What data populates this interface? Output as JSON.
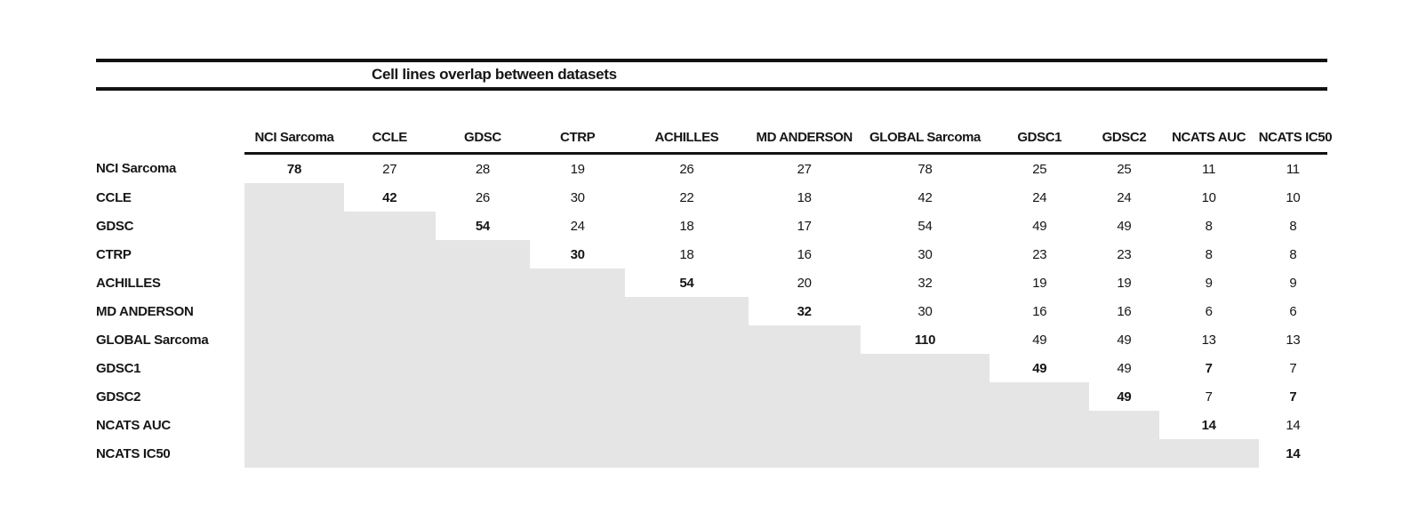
{
  "colors": {
    "shaded_cell": "#e6e5e5",
    "rule": "#121212",
    "text": "#161616",
    "background": "#ffffff"
  },
  "chart_data": {
    "type": "table",
    "title": "Cell lines overlap between datasets",
    "columns": [
      "NCI Sarcoma",
      "CCLE",
      "GDSC",
      "CTRP",
      "ACHILLES",
      "MD ANDERSON",
      "GLOBAL Sarcoma",
      "GDSC1",
      "GDSC2",
      "NCATS AUC",
      "NCATS IC50"
    ],
    "row_labels": [
      "NCI Sarcoma",
      "CCLE",
      "GDSC",
      "CTRP",
      "ACHILLES",
      "MD ANDERSON",
      "GLOBAL Sarcoma",
      "GDSC1",
      "GDSC2",
      "NCATS AUC",
      "NCATS IC50"
    ],
    "matrix": [
      [
        78,
        27,
        28,
        19,
        26,
        27,
        78,
        25,
        25,
        11,
        11
      ],
      [
        null,
        42,
        26,
        30,
        22,
        18,
        42,
        24,
        24,
        10,
        10
      ],
      [
        null,
        null,
        54,
        24,
        18,
        17,
        54,
        49,
        49,
        8,
        8
      ],
      [
        null,
        null,
        null,
        30,
        18,
        16,
        30,
        23,
        23,
        8,
        8
      ],
      [
        null,
        null,
        null,
        null,
        54,
        20,
        32,
        19,
        19,
        9,
        9
      ],
      [
        null,
        null,
        null,
        null,
        null,
        32,
        30,
        16,
        16,
        6,
        6
      ],
      [
        null,
        null,
        null,
        null,
        null,
        null,
        110,
        49,
        49,
        13,
        13
      ],
      [
        null,
        null,
        null,
        null,
        null,
        null,
        null,
        49,
        49,
        7,
        7
      ],
      [
        null,
        null,
        null,
        null,
        null,
        null,
        null,
        null,
        49,
        7,
        7
      ],
      [
        null,
        null,
        null,
        null,
        null,
        null,
        null,
        null,
        null,
        14,
        14
      ],
      [
        null,
        null,
        null,
        null,
        null,
        null,
        null,
        null,
        null,
        null,
        14
      ]
    ],
    "bold_cells": [
      [
        0,
        0
      ],
      [
        1,
        1
      ],
      [
        2,
        2
      ],
      [
        3,
        3
      ],
      [
        4,
        4
      ],
      [
        5,
        5
      ],
      [
        6,
        6
      ],
      [
        7,
        7
      ],
      [
        7,
        9
      ],
      [
        8,
        8
      ],
      [
        8,
        10
      ],
      [
        9,
        9
      ],
      [
        10,
        10
      ]
    ],
    "shaded_region": "lower-triangle",
    "layout": {
      "grid": false,
      "legend": "none",
      "header_underline": true,
      "title_rules": "thick horizontal rules above and below the title"
    }
  }
}
